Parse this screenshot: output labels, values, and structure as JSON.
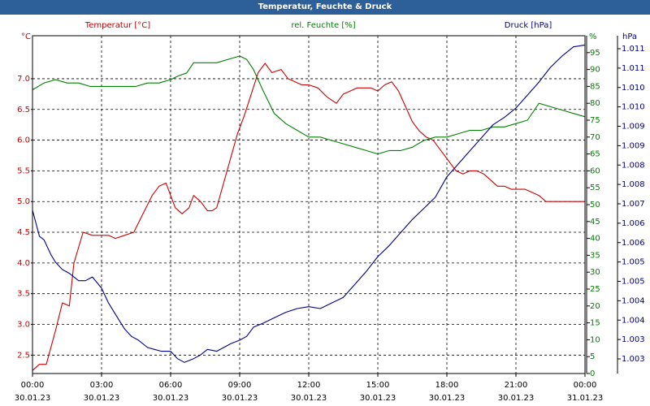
{
  "window": {
    "title": "Temperatur, Feuchte & Druck"
  },
  "chart_data": {
    "type": "line",
    "title": "Temperatur, Feuchte & Druck",
    "x_label_times": [
      "00:00",
      "03:00",
      "06:00",
      "09:00",
      "12:00",
      "15:00",
      "18:00",
      "21:00",
      "00:00"
    ],
    "x_label_dates": [
      "30.01.23",
      "30.01.23",
      "30.01.23",
      "30.01.23",
      "30.01.23",
      "30.01.23",
      "30.01.23",
      "30.01.23",
      "31.01.23"
    ],
    "x_range_hours": [
      0,
      24
    ],
    "grid": true,
    "axes": {
      "left": {
        "unit": "°C",
        "label": "Temperatur [°C]",
        "range": [
          2.2,
          7.7
        ],
        "ticks": [
          "2.5",
          "3.0",
          "3.5",
          "4.0",
          "4.5",
          "5.0",
          "5.5",
          "6.0",
          "6.5",
          "7.0"
        ],
        "color": "#cc0000"
      },
      "mid": {
        "unit": "%",
        "label": "rel. Feuchte [%]",
        "range": [
          0,
          100
        ],
        "ticks": [
          "0",
          "5",
          "10",
          "15",
          "20",
          "25",
          "30",
          "35",
          "40",
          "45",
          "50",
          "55",
          "60",
          "65",
          "70",
          "75",
          "80",
          "85",
          "90",
          "95"
        ],
        "color": "#008000"
      },
      "right": {
        "unit": "hPa",
        "label": "Druck [hPa]",
        "range": [
          1002.6,
          1011.7
        ],
        "ticks": [
          "1.003",
          "1.003",
          "1.004",
          "1.004",
          "1.005",
          "1.005",
          "1.006",
          "1.006",
          "1.007",
          "1.008",
          "1.008",
          "1.009",
          "1.009",
          "1.010",
          "1.010",
          "1.011",
          "1.011"
        ],
        "color": "#00008b"
      }
    },
    "series": [
      {
        "name": "Temperatur [°C]",
        "axis": "left",
        "color": "#cc0000",
        "x": [
          0,
          0.3,
          0.6,
          1.0,
          1.3,
          1.6,
          1.8,
          2.2,
          2.6,
          3.0,
          3.3,
          3.6,
          4.0,
          4.4,
          4.8,
          5.2,
          5.5,
          5.8,
          6.0,
          6.2,
          6.5,
          6.8,
          7.0,
          7.3,
          7.6,
          7.8,
          8.0,
          8.3,
          8.6,
          8.9,
          9.2,
          9.5,
          9.8,
          10.1,
          10.4,
          10.8,
          11.1,
          11.4,
          11.7,
          12.0,
          12.4,
          12.8,
          13.2,
          13.5,
          13.8,
          14.1,
          14.4,
          14.7,
          15.0,
          15.3,
          15.6,
          15.9,
          16.2,
          16.5,
          16.8,
          17.1,
          17.4,
          17.7,
          18.0,
          18.4,
          18.7,
          19.0,
          19.3,
          19.6,
          19.9,
          20.2,
          20.5,
          20.8,
          21.1,
          21.4,
          21.7,
          22.0,
          22.3,
          22.6,
          22.9,
          23.2,
          23.5,
          23.8,
          24.0
        ],
        "values": [
          2.25,
          2.35,
          2.35,
          2.9,
          3.35,
          3.3,
          4.0,
          4.5,
          4.45,
          4.45,
          4.45,
          4.4,
          4.45,
          4.5,
          4.8,
          5.1,
          5.25,
          5.3,
          5.1,
          4.9,
          4.8,
          4.9,
          5.1,
          5.0,
          4.85,
          4.85,
          4.9,
          5.3,
          5.7,
          6.1,
          6.4,
          6.75,
          7.1,
          7.25,
          7.1,
          7.15,
          7.0,
          6.95,
          6.9,
          6.9,
          6.85,
          6.7,
          6.6,
          6.75,
          6.8,
          6.85,
          6.85,
          6.85,
          6.8,
          6.9,
          6.95,
          6.8,
          6.55,
          6.3,
          6.15,
          6.05,
          6.0,
          5.85,
          5.7,
          5.5,
          5.45,
          5.5,
          5.5,
          5.45,
          5.35,
          5.25,
          5.25,
          5.2,
          5.2,
          5.2,
          5.15,
          5.1,
          5.0,
          5.0,
          5.0,
          5.0,
          5.0,
          5.0,
          5.0
        ]
      },
      {
        "name": "rel. Feuchte [%]",
        "axis": "mid",
        "color": "#008000",
        "x": [
          0,
          0.5,
          1.0,
          1.5,
          2.0,
          2.5,
          3.0,
          3.5,
          4.0,
          4.5,
          5.0,
          5.5,
          6.0,
          6.3,
          6.7,
          7.0,
          7.5,
          8.0,
          8.5,
          9.0,
          9.3,
          9.6,
          10.0,
          10.5,
          11.0,
          11.5,
          12.0,
          12.5,
          13.0,
          13.5,
          14.0,
          14.5,
          15.0,
          15.5,
          16.0,
          16.5,
          17.0,
          17.5,
          18.0,
          18.5,
          19.0,
          19.5,
          20.0,
          20.5,
          21.0,
          21.5,
          22.0,
          22.5,
          23.0,
          23.5,
          24.0
        ],
        "values": [
          84,
          86,
          87,
          86,
          86,
          85,
          85,
          85,
          85,
          85,
          86,
          86,
          87,
          88,
          89,
          92,
          92,
          92,
          93,
          94,
          93,
          90,
          84,
          77,
          74,
          72,
          70,
          70,
          69,
          68,
          67,
          66,
          65,
          66,
          66,
          67,
          69,
          70,
          70,
          71,
          72,
          72,
          73,
          73,
          74,
          75,
          80,
          79,
          78,
          77,
          76
        ]
      },
      {
        "name": "Druck [hPa]",
        "axis": "right",
        "color": "#00008b",
        "x": [
          0,
          0.3,
          0.5,
          0.8,
          1.0,
          1.3,
          1.6,
          2.0,
          2.3,
          2.6,
          3.0,
          3.3,
          3.6,
          4.0,
          4.3,
          4.6,
          5.0,
          5.3,
          5.6,
          6.0,
          6.3,
          6.6,
          7.0,
          7.3,
          7.6,
          8.0,
          8.3,
          8.6,
          9.0,
          9.3,
          9.6,
          10.0,
          10.5,
          11.0,
          11.5,
          12.0,
          12.5,
          13.0,
          13.5,
          14.0,
          14.5,
          15.0,
          15.5,
          16.0,
          16.5,
          17.0,
          17.5,
          18.0,
          18.5,
          19.0,
          19.5,
          20.0,
          20.5,
          21.0,
          21.5,
          22.0,
          22.5,
          23.0,
          23.5,
          24.0
        ],
        "values": [
          1007.0,
          1006.3,
          1006.2,
          1005.8,
          1005.6,
          1005.4,
          1005.3,
          1005.1,
          1005.1,
          1005.2,
          1004.9,
          1004.5,
          1004.2,
          1003.8,
          1003.6,
          1003.5,
          1003.3,
          1003.25,
          1003.2,
          1003.2,
          1003.0,
          1002.9,
          1003.0,
          1003.1,
          1003.25,
          1003.2,
          1003.3,
          1003.4,
          1003.5,
          1003.6,
          1003.85,
          1003.95,
          1004.1,
          1004.25,
          1004.35,
          1004.4,
          1004.35,
          1004.5,
          1004.65,
          1005.0,
          1005.35,
          1005.75,
          1006.05,
          1006.4,
          1006.75,
          1007.05,
          1007.35,
          1007.9,
          1008.25,
          1008.6,
          1008.95,
          1009.3,
          1009.5,
          1009.75,
          1010.1,
          1010.45,
          1010.85,
          1011.15,
          1011.4,
          1011.45
        ]
      }
    ]
  }
}
